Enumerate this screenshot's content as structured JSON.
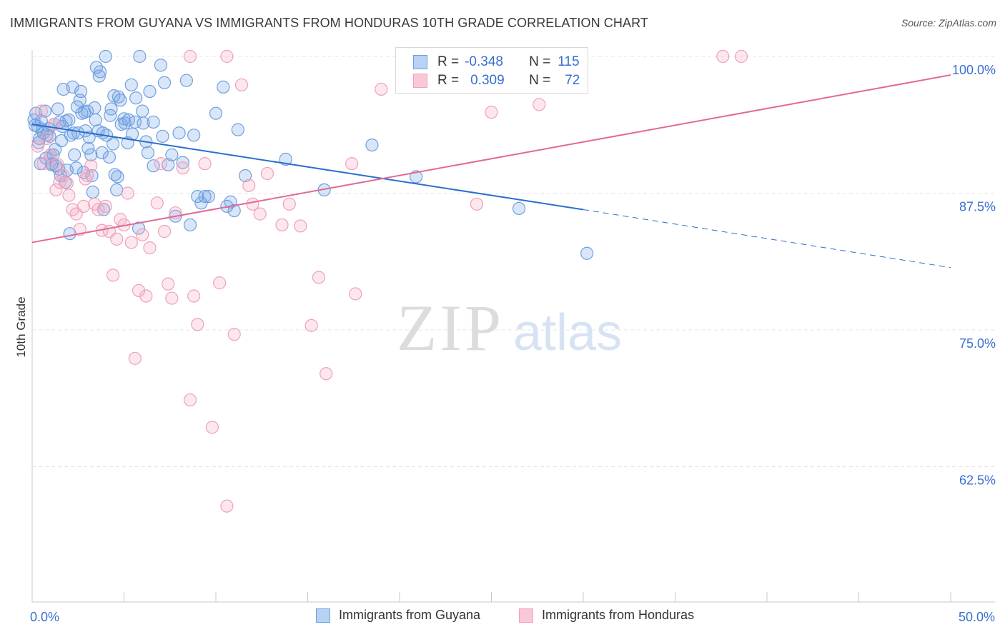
{
  "title": "IMMIGRANTS FROM GUYANA VS IMMIGRANTS FROM HONDURAS 10TH GRADE CORRELATION CHART",
  "source": "Source: ZipAtlas.com",
  "watermark": {
    "zip": "ZIP",
    "atlas": "atlas"
  },
  "legend": {
    "rows": [
      {
        "r_label": "R =",
        "r_value": "-0.348",
        "n_label": "N =",
        "n_value": "115"
      },
      {
        "r_label": "R =",
        "r_value": "0.309",
        "n_label": "N =",
        "n_value": "72"
      }
    ]
  },
  "chart_data": {
    "type": "scatter",
    "title": "IMMIGRANTS FROM GUYANA VS IMMIGRANTS FROM HONDURAS 10TH GRADE CORRELATION CHART",
    "xlabel": "",
    "ylabel": "10th Grade",
    "xlim": [
      0,
      50
    ],
    "ylim": [
      50,
      101
    ],
    "x_tick_labels": [
      "0.0%",
      "50.0%"
    ],
    "y_ticks": [
      62.5,
      75.0,
      87.5,
      100.0
    ],
    "y_tick_labels": [
      "62.5%",
      "75.0%",
      "87.5%",
      "100.0%"
    ],
    "grid": true,
    "legend_position": "top-center",
    "colors": {
      "guyana": "#6f9fe0",
      "honduras": "#f0a0ba",
      "guyana_line": "#2a6fd0",
      "honduras_line": "#e06a96"
    },
    "series": [
      {
        "name": "Immigrants from Guyana",
        "r": -0.348,
        "n": 115,
        "trend": {
          "x0": 0,
          "y0": 93.8,
          "x1": 30,
          "y1": 86.0,
          "dashed_to_x": 50,
          "dashed_to_y": 80.7
        },
        "points": [
          [
            0.2,
            94.8
          ],
          [
            0.3,
            93.6
          ],
          [
            0.4,
            92.5
          ],
          [
            0.5,
            94.1
          ],
          [
            0.6,
            93.0
          ],
          [
            0.7,
            95.0
          ],
          [
            0.8,
            92.8
          ],
          [
            0.9,
            93.4
          ],
          [
            1.0,
            91.0
          ],
          [
            1.1,
            90.2
          ],
          [
            1.2,
            93.8
          ],
          [
            1.3,
            90.0
          ],
          [
            1.4,
            95.2
          ],
          [
            1.5,
            94.0
          ],
          [
            1.6,
            92.3
          ],
          [
            1.7,
            97.0
          ],
          [
            1.8,
            88.5
          ],
          [
            1.9,
            89.6
          ],
          [
            2.0,
            94.2
          ],
          [
            2.1,
            92.8
          ],
          [
            2.2,
            97.2
          ],
          [
            2.3,
            91.0
          ],
          [
            2.4,
            89.8
          ],
          [
            2.5,
            93.0
          ],
          [
            2.6,
            96.0
          ],
          [
            2.7,
            94.8
          ],
          [
            2.8,
            89.4
          ],
          [
            2.9,
            93.2
          ],
          [
            3.0,
            95.0
          ],
          [
            3.1,
            92.6
          ],
          [
            3.2,
            91.0
          ],
          [
            3.3,
            87.6
          ],
          [
            3.4,
            95.3
          ],
          [
            3.5,
            99.0
          ],
          [
            3.6,
            93.2
          ],
          [
            3.7,
            98.6
          ],
          [
            3.8,
            91.2
          ],
          [
            3.9,
            86.0
          ],
          [
            4.0,
            100.0
          ],
          [
            4.2,
            90.8
          ],
          [
            4.3,
            95.2
          ],
          [
            4.4,
            92.0
          ],
          [
            4.5,
            89.2
          ],
          [
            4.6,
            87.8
          ],
          [
            4.7,
            96.3
          ],
          [
            4.8,
            96.0
          ],
          [
            5.0,
            94.3
          ],
          [
            5.2,
            92.1
          ],
          [
            5.4,
            97.4
          ],
          [
            5.6,
            94.0
          ],
          [
            5.8,
            84.3
          ],
          [
            6.0,
            95.0
          ],
          [
            6.2,
            92.2
          ],
          [
            6.4,
            96.8
          ],
          [
            6.6,
            94.0
          ],
          [
            7.0,
            99.2
          ],
          [
            7.2,
            97.6
          ],
          [
            7.6,
            91.0
          ],
          [
            8.0,
            93.0
          ],
          [
            8.2,
            90.3
          ],
          [
            8.4,
            97.8
          ],
          [
            8.8,
            92.8
          ],
          [
            9.0,
            87.2
          ],
          [
            9.4,
            87.2
          ],
          [
            9.6,
            87.2
          ],
          [
            10.0,
            94.8
          ],
          [
            10.4,
            97.2
          ],
          [
            10.8,
            86.7
          ],
          [
            11.0,
            85.9
          ],
          [
            11.2,
            93.3
          ],
          [
            0.15,
            93.7
          ],
          [
            0.35,
            92.1
          ],
          [
            0.55,
            93.3
          ],
          [
            0.75,
            90.7
          ],
          [
            0.95,
            92.7
          ],
          [
            1.05,
            90.1
          ],
          [
            1.25,
            91.5
          ],
          [
            1.45,
            89.7
          ],
          [
            1.65,
            93.6
          ],
          [
            1.85,
            94.1
          ],
          [
            2.05,
            83.8
          ],
          [
            2.25,
            93.0
          ],
          [
            2.45,
            95.4
          ],
          [
            2.65,
            96.8
          ],
          [
            2.85,
            94.9
          ],
          [
            3.05,
            91.6
          ],
          [
            3.25,
            89.1
          ],
          [
            3.45,
            94.2
          ],
          [
            3.65,
            98.2
          ],
          [
            3.85,
            93.0
          ],
          [
            4.05,
            92.8
          ],
          [
            4.25,
            94.6
          ],
          [
            4.45,
            96.4
          ],
          [
            4.65,
            89.0
          ],
          [
            4.85,
            93.8
          ],
          [
            5.05,
            93.9
          ],
          [
            5.25,
            94.2
          ],
          [
            5.45,
            92.9
          ],
          [
            5.65,
            96.2
          ],
          [
            5.85,
            100.0
          ],
          [
            6.05,
            93.9
          ],
          [
            6.3,
            91.2
          ],
          [
            6.6,
            90.0
          ],
          [
            7.1,
            92.7
          ],
          [
            7.4,
            90.1
          ],
          [
            7.8,
            85.4
          ],
          [
            8.6,
            84.6
          ],
          [
            9.2,
            86.6
          ],
          [
            10.6,
            86.3
          ],
          [
            11.6,
            89.1
          ],
          [
            13.8,
            90.6
          ],
          [
            15.9,
            87.8
          ],
          [
            18.5,
            91.9
          ],
          [
            20.9,
            89.0
          ],
          [
            26.5,
            86.1
          ],
          [
            30.2,
            82.0
          ],
          [
            0.1,
            94.2
          ],
          [
            0.45,
            90.2
          ],
          [
            1.15,
            91.0
          ],
          [
            1.55,
            89.1
          ]
        ]
      },
      {
        "name": "Immigrants from Honduras",
        "r": 0.309,
        "n": 72,
        "trend": {
          "x0": 0,
          "y0": 83.0,
          "x1": 50,
          "y1": 98.3
        },
        "points": [
          [
            0.3,
            91.8
          ],
          [
            0.5,
            95.0
          ],
          [
            0.6,
            90.2
          ],
          [
            0.8,
            92.5
          ],
          [
            1.0,
            91.0
          ],
          [
            1.2,
            93.8
          ],
          [
            1.3,
            87.8
          ],
          [
            1.5,
            88.5
          ],
          [
            1.7,
            89.1
          ],
          [
            1.9,
            88.4
          ],
          [
            2.0,
            87.3
          ],
          [
            2.2,
            86.0
          ],
          [
            2.4,
            85.6
          ],
          [
            2.6,
            84.2
          ],
          [
            2.8,
            86.3
          ],
          [
            3.0,
            89.1
          ],
          [
            3.2,
            90.0
          ],
          [
            3.4,
            86.5
          ],
          [
            3.6,
            86.0
          ],
          [
            3.8,
            84.1
          ],
          [
            4.0,
            86.3
          ],
          [
            4.2,
            84.0
          ],
          [
            4.4,
            80.0
          ],
          [
            4.6,
            83.3
          ],
          [
            4.8,
            85.1
          ],
          [
            5.0,
            84.6
          ],
          [
            5.2,
            87.5
          ],
          [
            5.6,
            72.4
          ],
          [
            5.8,
            78.6
          ],
          [
            6.0,
            83.7
          ],
          [
            6.2,
            78.1
          ],
          [
            6.4,
            82.5
          ],
          [
            6.8,
            86.6
          ],
          [
            7.0,
            90.2
          ],
          [
            7.2,
            84.0
          ],
          [
            7.4,
            79.2
          ],
          [
            7.6,
            77.9
          ],
          [
            7.8,
            85.7
          ],
          [
            8.2,
            89.8
          ],
          [
            8.6,
            68.6
          ],
          [
            8.8,
            78.1
          ],
          [
            9.0,
            75.5
          ],
          [
            9.4,
            90.2
          ],
          [
            9.8,
            66.1
          ],
          [
            10.2,
            79.3
          ],
          [
            10.6,
            58.9
          ],
          [
            11.0,
            74.6
          ],
          [
            11.4,
            97.4
          ],
          [
            11.8,
            88.2
          ],
          [
            12.0,
            86.5
          ],
          [
            12.4,
            85.6
          ],
          [
            12.8,
            89.3
          ],
          [
            13.6,
            84.6
          ],
          [
            14.0,
            86.5
          ],
          [
            14.6,
            84.5
          ],
          [
            15.2,
            75.4
          ],
          [
            15.6,
            79.8
          ],
          [
            16.0,
            71.0
          ],
          [
            17.4,
            90.2
          ],
          [
            17.6,
            78.3
          ],
          [
            19.0,
            97.0
          ],
          [
            24.2,
            86.5
          ],
          [
            25.0,
            94.9
          ],
          [
            27.6,
            95.6
          ],
          [
            8.6,
            100.0
          ],
          [
            10.6,
            100.0
          ],
          [
            21.6,
            100.0
          ],
          [
            37.6,
            100.0
          ],
          [
            38.6,
            100.0
          ],
          [
            1.4,
            90.1
          ],
          [
            2.9,
            88.8
          ],
          [
            5.4,
            83.0
          ]
        ]
      }
    ]
  },
  "bottom_legend": {
    "guyana": "Immigrants from Guyana",
    "honduras": "Immigrants from Honduras"
  }
}
